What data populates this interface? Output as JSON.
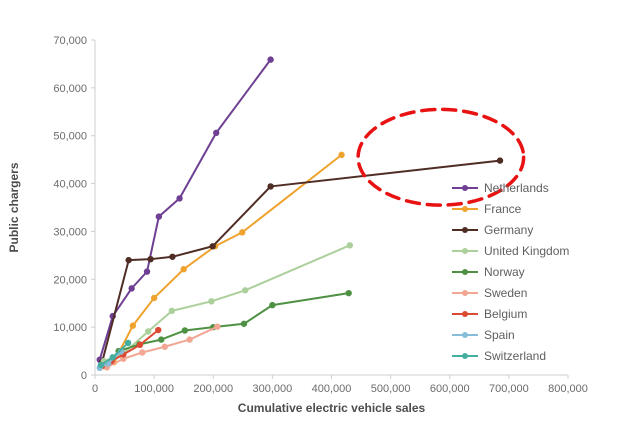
{
  "chart_data": {
    "type": "line",
    "title": "",
    "xlabel": "Cumulative electric vehicle sales",
    "ylabel": "Public chargers",
    "xlim": [
      0,
      800000
    ],
    "ylim": [
      0,
      70000
    ],
    "x_ticks": [
      0,
      100000,
      200000,
      300000,
      400000,
      500000,
      600000,
      700000,
      800000
    ],
    "y_ticks": [
      0,
      10000,
      20000,
      30000,
      40000,
      50000,
      60000,
      70000
    ],
    "grid": false,
    "legend_position": "inside-right",
    "series": [
      {
        "name": "Netherlands",
        "color": "#6e3f92",
        "points": [
          [
            8000,
            3200
          ],
          [
            30000,
            12300
          ],
          [
            62000,
            18100
          ],
          [
            88000,
            21600
          ],
          [
            108000,
            33100
          ],
          [
            143000,
            36900
          ],
          [
            205000,
            50600
          ],
          [
            297000,
            65900
          ]
        ]
      },
      {
        "name": "France",
        "color": "#efa32e",
        "points": [
          [
            12000,
            1800
          ],
          [
            32000,
            2700
          ],
          [
            64000,
            10300
          ],
          [
            100000,
            16100
          ],
          [
            150000,
            22100
          ],
          [
            203000,
            26900
          ],
          [
            249000,
            29800
          ],
          [
            417000,
            46000
          ]
        ]
      },
      {
        "name": "Germany",
        "color": "#4f2d24",
        "points": [
          [
            12000,
            2700
          ],
          [
            57000,
            24000
          ],
          [
            94000,
            24200
          ],
          [
            131000,
            24700
          ],
          [
            199000,
            26900
          ],
          [
            297000,
            39400
          ],
          [
            685000,
            44800
          ]
        ]
      },
      {
        "name": "United Kingdom",
        "color": "#abd09c",
        "points": [
          [
            15000,
            2900
          ],
          [
            45000,
            4200
          ],
          [
            90000,
            9100
          ],
          [
            130000,
            13400
          ],
          [
            197000,
            15400
          ],
          [
            254000,
            17700
          ],
          [
            431000,
            27100
          ]
        ]
      },
      {
        "name": "Norway",
        "color": "#4e9143",
        "points": [
          [
            40000,
            5000
          ],
          [
            75000,
            6400
          ],
          [
            112000,
            7400
          ],
          [
            152000,
            9300
          ],
          [
            200000,
            10000
          ],
          [
            252000,
            10700
          ],
          [
            300000,
            14600
          ],
          [
            429000,
            17100
          ]
        ]
      },
      {
        "name": "Sweden",
        "color": "#f3a693",
        "points": [
          [
            20000,
            1600
          ],
          [
            48000,
            3400
          ],
          [
            80000,
            4700
          ],
          [
            118000,
            5900
          ],
          [
            160000,
            7400
          ],
          [
            207000,
            10100
          ]
        ]
      },
      {
        "name": "Belgium",
        "color": "#dc4a32",
        "points": [
          [
            12000,
            1900
          ],
          [
            28000,
            2900
          ],
          [
            48000,
            4300
          ],
          [
            76000,
            6300
          ],
          [
            107000,
            9400
          ]
        ]
      },
      {
        "name": "Spain",
        "color": "#87bdd8",
        "points": [
          [
            8000,
            1500
          ],
          [
            22000,
            2400
          ],
          [
            44000,
            4900
          ]
        ]
      },
      {
        "name": "Switzerland",
        "color": "#46ae9f",
        "points": [
          [
            10000,
            2100
          ],
          [
            30000,
            3700
          ],
          [
            56000,
            6700
          ]
        ]
      }
    ],
    "annotation": {
      "shape": "dashed-ellipse",
      "color": "#e81212",
      "cx": 585000,
      "cy": 45500,
      "rx": 140000,
      "ry": 10000
    }
  }
}
